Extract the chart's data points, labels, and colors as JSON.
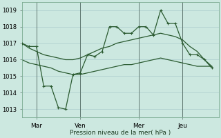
{
  "background_color": "#cce8e0",
  "plot_bg_color": "#cce8e0",
  "grid_color": "#aacccc",
  "line_color": "#2a5a30",
  "vline_color": "#607870",
  "title": "Pression niveau de la mer( hPa )",
  "ylim": [
    1012.5,
    1019.5
  ],
  "yticks": [
    1013,
    1014,
    1015,
    1016,
    1017,
    1018,
    1019
  ],
  "x_tick_labels": [
    "Mar",
    "Ven",
    "Mer",
    "Jeu"
  ],
  "x_tick_positions": [
    2,
    8,
    16,
    22
  ],
  "x_vlines": [
    2,
    8,
    16,
    22
  ],
  "xlim": [
    0,
    27
  ],
  "series1": [
    1017.0,
    1016.8,
    1016.8,
    1014.4,
    1014.4,
    1013.1,
    1013.0,
    1015.1,
    1015.2,
    1016.3,
    1016.2,
    1016.5,
    1018.0,
    1018.0,
    1017.6,
    1017.6,
    1018.0,
    1018.0,
    1017.5,
    1019.0,
    1018.2,
    1018.2,
    1017.0,
    1016.3,
    1016.3,
    1016.0,
    1015.5
  ],
  "series2": [
    1017.0,
    1016.7,
    1016.5,
    1016.3,
    1016.2,
    1016.1,
    1016.0,
    1016.0,
    1016.1,
    1016.3,
    1016.5,
    1016.7,
    1016.8,
    1017.0,
    1017.1,
    1017.2,
    1017.3,
    1017.4,
    1017.5,
    1017.6,
    1017.5,
    1017.4,
    1017.2,
    1016.8,
    1016.5,
    1016.0,
    1015.6
  ],
  "series3": [
    1016.0,
    1015.8,
    1015.7,
    1015.6,
    1015.5,
    1015.3,
    1015.2,
    1015.1,
    1015.1,
    1015.2,
    1015.3,
    1015.4,
    1015.5,
    1015.6,
    1015.7,
    1015.7,
    1015.8,
    1015.9,
    1016.0,
    1016.1,
    1016.0,
    1015.9,
    1015.8,
    1015.7,
    1015.6,
    1015.6,
    1015.6
  ],
  "series1_markers": [
    0,
    3,
    5,
    7,
    8,
    9,
    11,
    12,
    13,
    14,
    16,
    17,
    18,
    19,
    20,
    21,
    22,
    23,
    25,
    26
  ],
  "series2_smooth": true
}
